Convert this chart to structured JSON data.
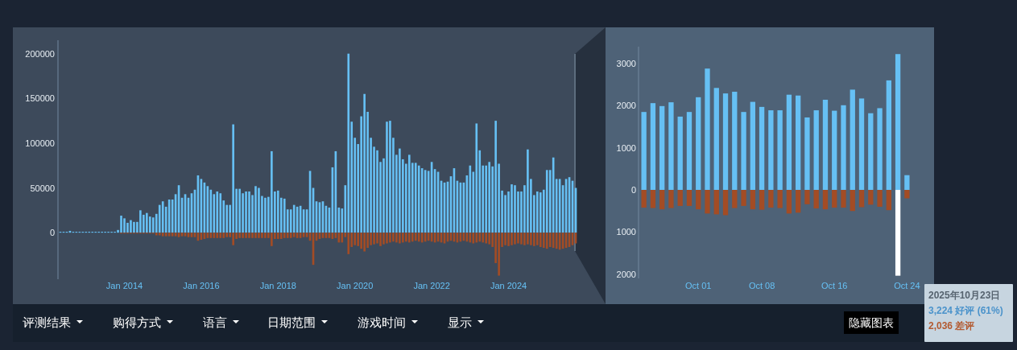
{
  "chart_data": [
    {
      "type": "bar",
      "stacked": true,
      "categories": [
        null,
        null,
        null,
        null,
        null,
        null,
        null,
        null,
        null,
        null,
        null,
        null,
        null,
        null,
        null,
        null,
        null,
        null,
        null,
        null,
        "Jan 2014",
        null,
        null,
        null,
        null,
        null,
        null,
        null,
        null,
        null,
        null,
        null,
        null,
        null,
        null,
        null,
        null,
        null,
        null,
        null,
        null,
        null,
        null,
        null,
        "Jan 2016",
        null,
        null,
        null,
        null,
        null,
        null,
        null,
        null,
        null,
        null,
        null,
        null,
        null,
        null,
        null,
        null,
        null,
        null,
        null,
        null,
        null,
        null,
        null,
        "Jan 2018",
        null,
        null,
        null,
        null,
        null,
        null,
        null,
        null,
        null,
        null,
        null,
        null,
        null,
        null,
        null,
        null,
        null,
        null,
        null,
        null,
        null,
        null,
        null,
        "Jan 2020",
        null,
        null,
        null,
        null,
        null,
        null,
        null,
        null,
        null,
        null,
        null,
        null,
        null,
        null,
        null,
        null,
        null,
        null,
        null,
        null,
        null,
        null,
        null,
        "Jan 2022",
        null,
        null,
        null,
        null,
        null,
        null,
        null,
        null,
        null,
        null,
        null,
        null,
        null,
        null,
        null,
        null,
        null,
        null,
        null,
        null,
        null,
        null,
        null,
        "Jan 2024",
        null,
        null,
        null,
        null,
        null,
        null,
        null,
        null,
        null,
        null,
        null,
        null,
        null,
        null,
        null,
        null,
        null,
        null,
        null,
        null,
        null
      ],
      "series": [
        {
          "color": "#66c0f4",
          "values": [
            1000,
            1000,
            1000,
            2000,
            1000,
            1000,
            1000,
            1000,
            1000,
            1000,
            1000,
            1000,
            1000,
            1000,
            1000,
            1000,
            1000,
            1000,
            3000,
            19000,
            16000,
            11000,
            14000,
            12000,
            12000,
            25000,
            20000,
            22000,
            18000,
            17000,
            21000,
            31000,
            35000,
            29000,
            37000,
            37000,
            43000,
            53000,
            39000,
            43000,
            39000,
            44000,
            48000,
            64000,
            60000,
            56000,
            52000,
            48000,
            43000,
            46000,
            44000,
            36000,
            31000,
            31000,
            121000,
            49000,
            49000,
            44000,
            46000,
            46000,
            42000,
            52000,
            50000,
            41000,
            39000,
            40000,
            91000,
            46000,
            47000,
            39000,
            38000,
            26000,
            26000,
            31000,
            29000,
            30000,
            26000,
            26000,
            69000,
            50000,
            35000,
            34000,
            35000,
            30000,
            28000,
            73000,
            91000,
            28000,
            27000,
            53000,
            200000,
            124000,
            106000,
            99000,
            130000,
            155000,
            135000,
            106000,
            96000,
            92000,
            79000,
            83000,
            124000,
            125000,
            106000,
            87000,
            94000,
            82000,
            77000,
            87000,
            78000,
            78000,
            75000,
            72000,
            70000,
            69000,
            79000,
            71000,
            68000,
            58000,
            56000,
            57000,
            63000,
            72000,
            58000,
            56000,
            56000,
            64000,
            75000,
            68000,
            122000,
            92000,
            75000,
            75000,
            79000,
            74000,
            125000,
            77000,
            47000,
            42000,
            46000,
            54000,
            53000,
            46000,
            46000,
            53000,
            93000,
            60000,
            42000,
            46000,
            45000,
            48000,
            70000,
            70000,
            84000,
            60000,
            60000,
            53000,
            60000,
            62000,
            58000,
            50000
          ]
        },
        {
          "color": "#a34c25",
          "values": [
            null,
            null,
            null,
            null,
            null,
            null,
            null,
            null,
            null,
            null,
            null,
            null,
            null,
            null,
            null,
            null,
            null,
            null,
            null,
            -1000,
            -1000,
            -1000,
            -1000,
            -1000,
            -1000,
            -1000,
            -1000,
            -1000,
            -1000,
            -1000,
            -3000,
            -3000,
            -4000,
            -4000,
            -4000,
            -4000,
            -4000,
            -5000,
            -4000,
            -4000,
            -5000,
            -5000,
            -5000,
            -9000,
            -8000,
            -7000,
            -6000,
            -6000,
            -6000,
            -6000,
            -6000,
            -6000,
            -5000,
            -5000,
            -14000,
            -7000,
            -6000,
            -6000,
            -6000,
            -6000,
            -6000,
            -6000,
            -6000,
            -6000,
            -6000,
            -6000,
            -15000,
            -7000,
            -7000,
            -7000,
            -6000,
            -6000,
            -6000,
            -5000,
            -6000,
            -6000,
            -5000,
            -5000,
            -9000,
            -36000,
            -9000,
            -7000,
            -6000,
            -6000,
            -6000,
            -7000,
            -6000,
            -11000,
            -11000,
            -5000,
            -24000,
            -16000,
            -14000,
            -15000,
            -18000,
            -21000,
            -17000,
            -14000,
            -13000,
            -12000,
            -15000,
            -13000,
            -12000,
            -11000,
            -10000,
            -11000,
            -12000,
            -11000,
            -10000,
            -11000,
            -10000,
            -9000,
            -10000,
            -11000,
            -10000,
            -9000,
            -10000,
            -11000,
            -10000,
            -11000,
            -12000,
            -10000,
            -9000,
            -10000,
            -11000,
            -10000,
            -9000,
            -10000,
            -11000,
            -12000,
            -11000,
            -10000,
            -11000,
            -12000,
            -13000,
            -16000,
            -34000,
            -48000,
            -16000,
            -14000,
            -15000,
            -14000,
            -13000,
            -12000,
            -13000,
            -14000,
            -13000,
            -14000,
            -15000,
            -14000,
            -16000,
            -17000,
            -18000,
            -16000,
            -17000,
            -18000,
            -19000,
            -18000,
            -17000,
            -16000,
            -14000,
            -12000
          ]
        }
      ],
      "ylim": [
        -52000,
        215000
      ],
      "yticks": [
        0,
        50000,
        100000,
        150000,
        200000
      ]
    },
    {
      "type": "bar",
      "stacked": true,
      "categories": [
        null,
        null,
        null,
        null,
        null,
        null,
        "Oct 01",
        null,
        null,
        null,
        null,
        null,
        null,
        "Oct 08",
        null,
        null,
        null,
        null,
        null,
        null,
        null,
        "Oct 16",
        null,
        null,
        null,
        null,
        null,
        null,
        null,
        "Oct 24"
      ],
      "series": [
        {
          "color": "#66c0f4",
          "values": [
            1850,
            2060,
            1990,
            2080,
            1740,
            1850,
            2200,
            2880,
            2420,
            2290,
            2330,
            1850,
            2090,
            1970,
            1890,
            1890,
            2260,
            2240,
            1720,
            1890,
            2140,
            1880,
            2010,
            2380,
            2170,
            1820,
            1940,
            2600,
            3224,
            350
          ]
        },
        {
          "colors": [
            "#a34c25",
            "#a34c25",
            "#a34c25",
            "#a34c25",
            "#a34c25",
            "#a34c25",
            "#a34c25",
            "#a34c25",
            "#a34c25",
            "#a34c25",
            "#a34c25",
            "#a34c25",
            "#a34c25",
            "#a34c25",
            "#a34c25",
            "#a34c25",
            "#a34c25",
            "#a34c25",
            "#a34c25",
            "#a34c25",
            "#a34c25",
            "#a34c25",
            "#a34c25",
            "#a34c25",
            "#a34c25",
            "#a34c25",
            "#a34c25",
            "#a34c25",
            "#ffffff",
            "#a34c25"
          ],
          "values": [
            -420,
            -430,
            -460,
            -430,
            -380,
            -380,
            -460,
            -560,
            -580,
            -600,
            -430,
            -380,
            -460,
            -470,
            -420,
            -430,
            -560,
            -540,
            -340,
            -440,
            -460,
            -420,
            -420,
            -500,
            -410,
            -350,
            -400,
            -480,
            -2036,
            -200
          ]
        }
      ],
      "ylim": [
        -2100,
        3400
      ],
      "yticks": [
        {
          "value": -2000,
          "label": "2000"
        },
        {
          "value": -1000,
          "label": "1000"
        },
        0,
        1000,
        2000,
        3000
      ],
      "annotations": [
        "2025年10月23日",
        "3,224 好评 (61%)",
        "2,036 差评"
      ]
    },
    {
      "type": "other",
      "annotations": [
        "评测结果",
        "购得方式",
        "语言",
        "日期范围",
        "游戏时间",
        "显示",
        "隐藏图表"
      ]
    }
  ]
}
